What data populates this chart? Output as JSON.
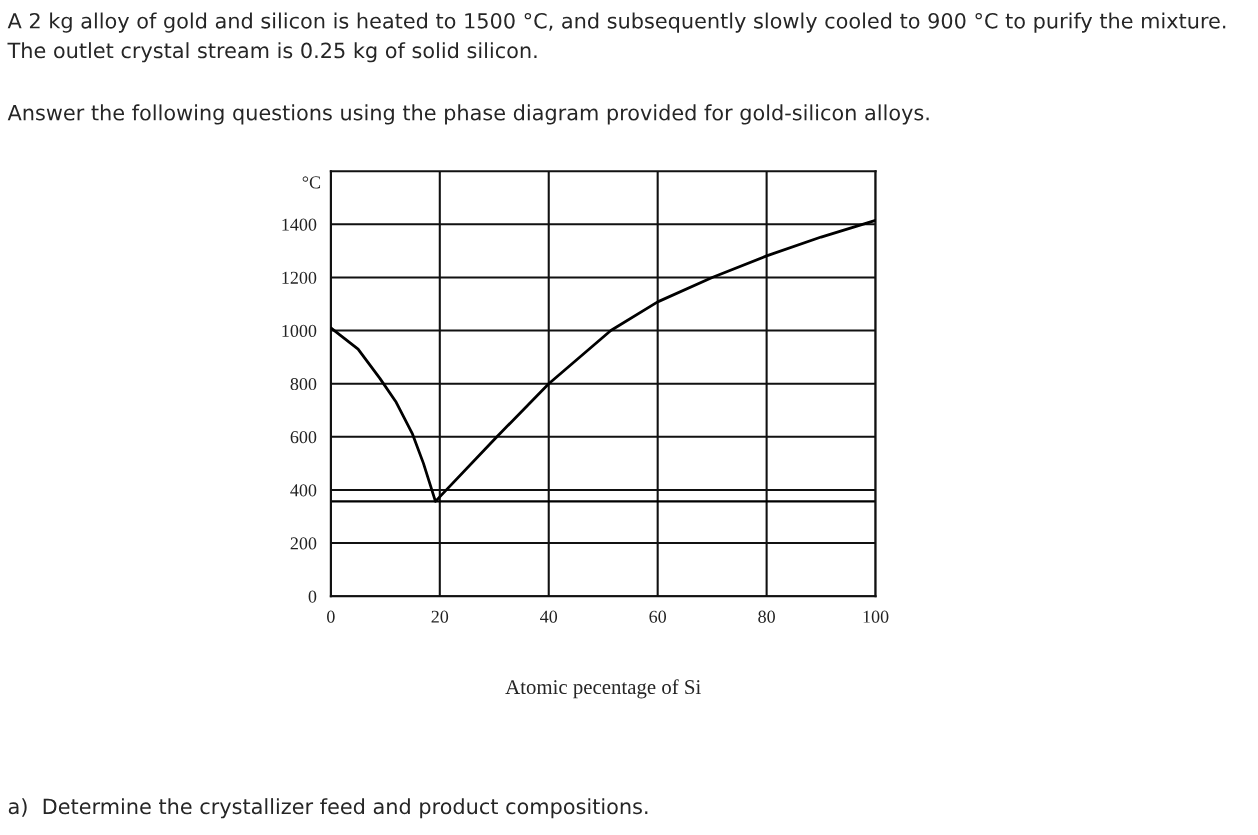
{
  "chart_data": {
    "type": "line",
    "title": "A 2 kg alloy of gold and silicon is heated to 1500 °C, and subsequently slowly cooled to 900 °C to purify the mixture. The outlet crystal stream is 0.25 kg of solid silicon.",
    "subtitle": "Answer the following questions using the phase diagram provided for gold-silicon alloys.",
    "xlabel": "Atomic pecentage of Si",
    "ylabel": "°C",
    "annotations": [
      "a)  Determine the crystallizer feed and product compositions."
    ],
    "x": [
      0,
      5,
      9,
      12,
      15,
      17,
      19.2,
      30,
      40,
      51.4,
      60,
      70,
      80,
      90,
      100
    ],
    "series": [
      {
        "color": "#000000",
        "values": [
          1010,
          930,
          820,
          730,
          610,
          500,
          357,
          590,
          800,
          1000,
          1108,
          1200,
          1281,
          1352,
          1415
        ]
      }
    ],
    "xlim": [
      0,
      100
    ],
    "xticks": [
      0,
      20,
      40,
      60,
      80,
      100
    ],
    "ylim": [
      0,
      1600
    ],
    "yticks": [
      0,
      200,
      400,
      600,
      800,
      1000,
      1200,
      1400
    ],
    "ref_lines": [
      {
        "axis": "y",
        "value": 357,
        "color": "#000000"
      }
    ],
    "grid": true,
    "marker": "none",
    "line_style": "solid"
  }
}
